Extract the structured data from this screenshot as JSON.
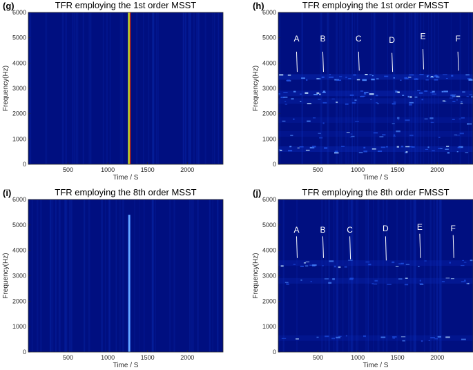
{
  "chart_data": [
    {
      "type": "heatmap",
      "panel_label": "(g)",
      "title": "TFR employing the 1st order MSST",
      "xlabel": "Time / S",
      "ylabel": "Frequency(Hz)",
      "xlim": [
        0,
        2450
      ],
      "ylim": [
        0,
        6000
      ],
      "x_ticks": [
        500,
        1000,
        1500,
        2000
      ],
      "y_ticks": [
        0,
        1000,
        2000,
        3000,
        4000,
        5000,
        6000
      ],
      "background_color": "#000f80",
      "features": [
        {
          "kind": "vertical-band",
          "x": 1270,
          "y_from": 0,
          "y_to": 6000,
          "width": 35,
          "palette": [
            "#ff3b00",
            "#ffe200",
            "#27ff8d",
            "#ffae00",
            "#ff3000",
            "#a30000"
          ]
        }
      ],
      "annotations": []
    },
    {
      "type": "heatmap",
      "panel_label": "(h)",
      "title": "TFR employing the 1st order FMSST",
      "xlabel": "Time / S",
      "ylabel": "Frequency(Hz)",
      "xlim": [
        0,
        2450
      ],
      "ylim": [
        0,
        6000
      ],
      "x_ticks": [
        500,
        1000,
        1500,
        2000
      ],
      "y_ticks": [
        0,
        1000,
        2000,
        3000,
        4000,
        5000,
        6000
      ],
      "background_color": "#000f80",
      "features": [
        {
          "kind": "energy-band",
          "y": 3450,
          "intensity": 0.85
        },
        {
          "kind": "energy-band",
          "y": 2800,
          "intensity": 0.75
        },
        {
          "kind": "energy-band",
          "y": 2500,
          "intensity": 0.45
        },
        {
          "kind": "energy-band",
          "y": 1750,
          "intensity": 0.3
        },
        {
          "kind": "energy-band",
          "y": 1200,
          "intensity": 0.3
        },
        {
          "kind": "energy-band",
          "y": 600,
          "intensity": 0.7
        }
      ],
      "annotations": [
        {
          "text": "A",
          "x": 230,
          "y_text": 4850,
          "y_top": 4450,
          "y_bottom": 3650
        },
        {
          "text": "B",
          "x": 560,
          "y_text": 4850,
          "y_top": 4450,
          "y_bottom": 3650
        },
        {
          "text": "C",
          "x": 1010,
          "y_text": 4850,
          "y_top": 4450,
          "y_bottom": 3700
        },
        {
          "text": "D",
          "x": 1430,
          "y_text": 4800,
          "y_top": 4400,
          "y_bottom": 3650
        },
        {
          "text": "E",
          "x": 1820,
          "y_text": 4950,
          "y_top": 4550,
          "y_bottom": 3750
        },
        {
          "text": "F",
          "x": 2260,
          "y_text": 4850,
          "y_top": 4450,
          "y_bottom": 3700
        }
      ]
    },
    {
      "type": "heatmap",
      "panel_label": "(i)",
      "title": "TFR employing the 8th order MSST",
      "xlabel": "Time / S",
      "ylabel": "Frequency(Hz)",
      "xlim": [
        0,
        2450
      ],
      "ylim": [
        0,
        6000
      ],
      "x_ticks": [
        500,
        1000,
        1500,
        2000
      ],
      "y_ticks": [
        0,
        1000,
        2000,
        3000,
        4000,
        5000,
        6000
      ],
      "background_color": "#000f80",
      "features": [
        {
          "kind": "vertical-band",
          "x": 1270,
          "y_from": 0,
          "y_to": 5400,
          "width": 28,
          "palette": [
            "#2f78ff",
            "#79b5ff",
            "#2f78ff"
          ]
        }
      ],
      "annotations": []
    },
    {
      "type": "heatmap",
      "panel_label": "(j)",
      "title": "TFR employing the 8th order FMSST",
      "xlabel": "Time / S",
      "ylabel": "Frequency(Hz)",
      "xlim": [
        0,
        2450
      ],
      "ylim": [
        0,
        6000
      ],
      "x_ticks": [
        500,
        1000,
        1500,
        2000
      ],
      "y_ticks": [
        0,
        1000,
        2000,
        3000,
        4000,
        5000,
        6000
      ],
      "background_color": "#000f80",
      "features": [
        {
          "kind": "energy-band",
          "y": 3500,
          "intensity": 0.5
        },
        {
          "kind": "energy-band",
          "y": 2800,
          "intensity": 0.45
        },
        {
          "kind": "energy-band",
          "y": 550,
          "intensity": 0.35
        }
      ],
      "annotations": [
        {
          "text": "A",
          "x": 230,
          "y_text": 4700,
          "y_top": 4550,
          "y_bottom": 3700
        },
        {
          "text": "B",
          "x": 560,
          "y_text": 4700,
          "y_top": 4550,
          "y_bottom": 3700
        },
        {
          "text": "C",
          "x": 900,
          "y_text": 4700,
          "y_top": 4550,
          "y_bottom": 3650
        },
        {
          "text": "D",
          "x": 1350,
          "y_text": 4750,
          "y_top": 4550,
          "y_bottom": 3600
        },
        {
          "text": "E",
          "x": 1780,
          "y_text": 4800,
          "y_top": 4650,
          "y_bottom": 3700
        },
        {
          "text": "F",
          "x": 2200,
          "y_text": 4750,
          "y_top": 4600,
          "y_bottom": 3700
        }
      ]
    }
  ]
}
